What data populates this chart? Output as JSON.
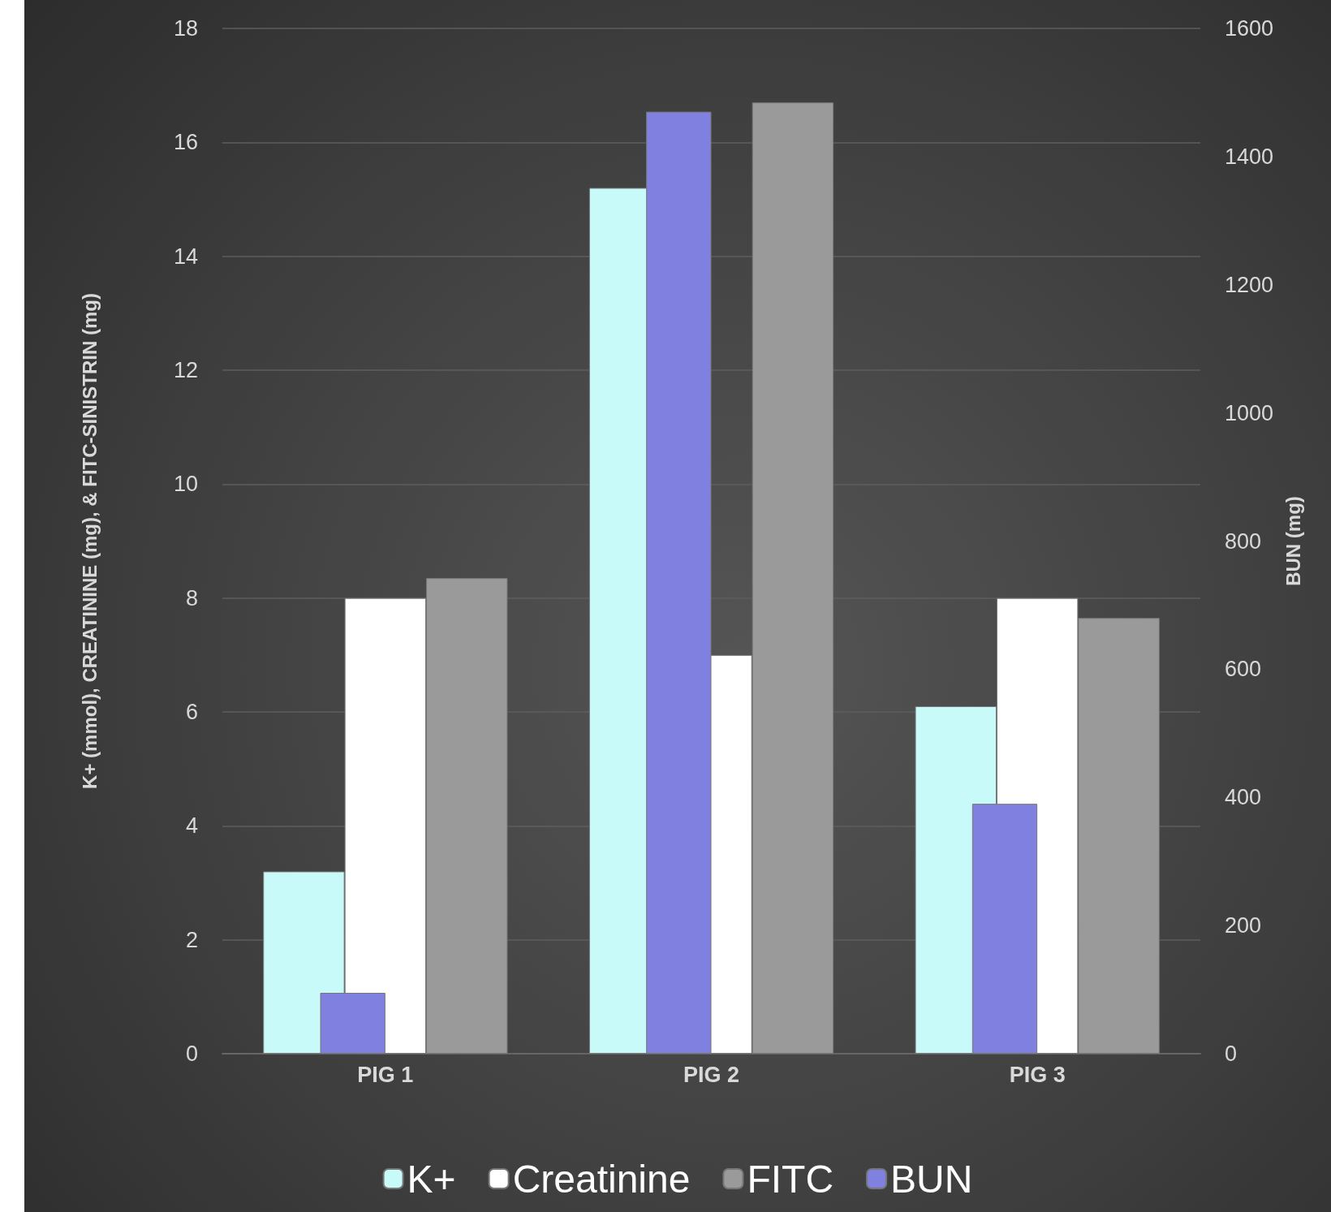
{
  "chart_data": {
    "type": "bar",
    "categories": [
      "PIG 1",
      "PIG 2",
      "PIG 3"
    ],
    "ylabel": "K+ (mmol), CREATININE (mg), & FITC-SINISTRIN (mg)",
    "y2label": "BUN (mg)",
    "series": [
      {
        "name": "K+",
        "color": "#c8fafa",
        "values": [
          3.2,
          15.2,
          6.1
        ]
      },
      {
        "name": "Creatinine",
        "color": "#ffffff",
        "values": [
          8.0,
          7.0,
          8.0
        ]
      },
      {
        "name": "FITC",
        "color": "#9a9a9a",
        "values": [
          8.35,
          16.7,
          7.65
        ]
      },
      {
        "name": "BUN",
        "color": "#8080e0",
        "values": [
          95,
          1470,
          390
        ],
        "axis": "y2"
      }
    ],
    "ylim": [
      0,
      18
    ],
    "yticks": [
      0,
      2,
      4,
      6,
      8,
      10,
      12,
      14,
      16,
      18
    ],
    "y2lim": [
      0,
      1600
    ],
    "y2ticks": [
      0,
      200,
      400,
      600,
      800,
      1000,
      1200,
      1400,
      1600
    ],
    "grid": "y",
    "legend": "bottom"
  }
}
